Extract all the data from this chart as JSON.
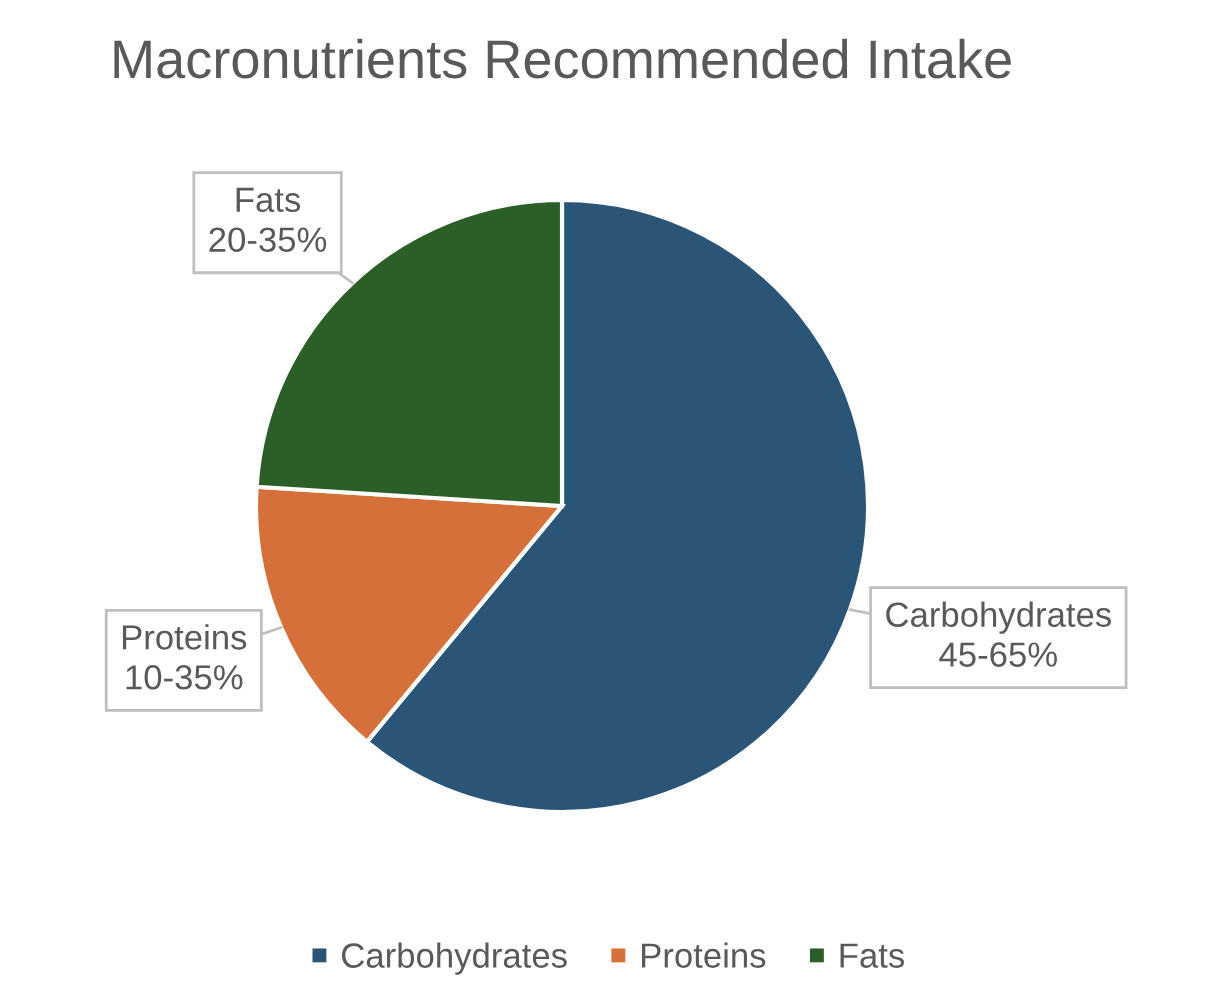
{
  "chart_data": {
    "type": "pie",
    "title": "Macronutrients Recommended Intake",
    "categories": [
      "Carbohydrates",
      "Proteins",
      "Fats"
    ],
    "values": [
      61,
      15,
      24
    ],
    "colors": [
      "#2a5577",
      "#d6703a",
      "#2c5e27"
    ],
    "annotations": [
      "45-65%",
      "10-35%",
      "20-35%"
    ],
    "legend": "bottom"
  }
}
